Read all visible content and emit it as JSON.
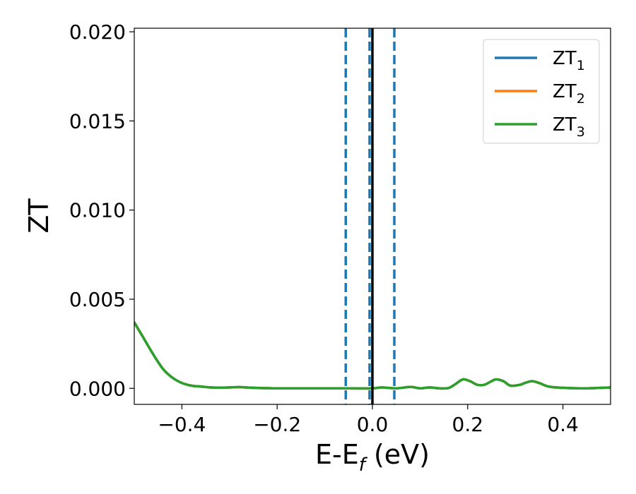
{
  "chart_data": {
    "type": "line",
    "xlabel": {
      "main": "E-E",
      "sub": "f",
      "tail": " (eV)"
    },
    "ylabel": "ZT",
    "xlim": [
      -0.5,
      0.5
    ],
    "ylim": [
      -0.0009,
      0.0202
    ],
    "xticks": [
      {
        "value": -0.4,
        "label": "−0.4"
      },
      {
        "value": -0.2,
        "label": "−0.2"
      },
      {
        "value": 0.0,
        "label": "0.0"
      },
      {
        "value": 0.2,
        "label": "0.2"
      },
      {
        "value": 0.4,
        "label": "0.4"
      }
    ],
    "yticks": [
      {
        "value": 0.0,
        "label": "0.000"
      },
      {
        "value": 0.005,
        "label": "0.005"
      },
      {
        "value": 0.01,
        "label": "0.010"
      },
      {
        "value": 0.015,
        "label": "0.015"
      },
      {
        "value": 0.02,
        "label": "0.020"
      }
    ],
    "grid": false,
    "legend_position": "top-right",
    "series": [
      {
        "name": "ZT",
        "sub": "1",
        "color": "#1f77b4",
        "x": [
          -0.5,
          -0.48,
          -0.46,
          -0.44,
          -0.42,
          -0.4,
          -0.38,
          -0.36,
          -0.34,
          -0.32,
          -0.3,
          -0.28,
          -0.26,
          -0.24,
          -0.22,
          -0.2,
          -0.15,
          -0.1,
          -0.05,
          0.0,
          0.02,
          0.05,
          0.08,
          0.1,
          0.12,
          0.14,
          0.16,
          0.175,
          0.19,
          0.205,
          0.22,
          0.235,
          0.25,
          0.26,
          0.275,
          0.29,
          0.31,
          0.32,
          0.335,
          0.35,
          0.37,
          0.4,
          0.45,
          0.5
        ],
        "y": [
          0.0037,
          0.0028,
          0.0019,
          0.0011,
          0.0006,
          0.0003,
          0.00015,
          0.0001,
          5e-05,
          4e-05,
          5e-05,
          7e-05,
          4e-05,
          2e-05,
          1e-05,
          0.0,
          0.0,
          0.0,
          0.0,
          0.0,
          5e-05,
          0.0,
          8e-05,
          0.0,
          5e-05,
          0.0,
          2e-05,
          0.00025,
          0.0005,
          0.0004,
          0.0002,
          0.0002,
          0.0004,
          0.0005,
          0.0004,
          0.00015,
          0.0002,
          0.0003,
          0.0004,
          0.0003,
          0.0001,
          3e-05,
          0.0,
          5e-05
        ]
      },
      {
        "name": "ZT",
        "sub": "2",
        "color": "#ff7f0e",
        "x": [
          -0.5,
          -0.48,
          -0.46,
          -0.44,
          -0.42,
          -0.4,
          -0.38,
          -0.36,
          -0.34,
          -0.32,
          -0.3,
          -0.28,
          -0.26,
          -0.24,
          -0.22,
          -0.2,
          -0.15,
          -0.1,
          -0.05,
          0.0,
          0.02,
          0.05,
          0.08,
          0.1,
          0.12,
          0.14,
          0.16,
          0.175,
          0.19,
          0.205,
          0.22,
          0.235,
          0.25,
          0.26,
          0.275,
          0.29,
          0.31,
          0.32,
          0.335,
          0.35,
          0.37,
          0.4,
          0.45,
          0.5
        ],
        "y": [
          0.0037,
          0.0028,
          0.0019,
          0.0011,
          0.0006,
          0.0003,
          0.00015,
          0.0001,
          5e-05,
          4e-05,
          5e-05,
          7e-05,
          4e-05,
          2e-05,
          1e-05,
          0.0,
          0.0,
          0.0,
          0.0,
          0.0,
          5e-05,
          0.0,
          8e-05,
          0.0,
          5e-05,
          0.0,
          2e-05,
          0.00025,
          0.0005,
          0.0004,
          0.0002,
          0.0002,
          0.0004,
          0.0005,
          0.0004,
          0.00015,
          0.0002,
          0.0003,
          0.0004,
          0.0003,
          0.0001,
          3e-05,
          0.0,
          5e-05
        ]
      },
      {
        "name": "ZT",
        "sub": "3",
        "color": "#2ca02c",
        "x": [
          -0.5,
          -0.48,
          -0.46,
          -0.44,
          -0.42,
          -0.4,
          -0.38,
          -0.36,
          -0.34,
          -0.32,
          -0.3,
          -0.28,
          -0.26,
          -0.24,
          -0.22,
          -0.2,
          -0.15,
          -0.1,
          -0.05,
          0.0,
          0.02,
          0.05,
          0.08,
          0.1,
          0.12,
          0.14,
          0.16,
          0.175,
          0.19,
          0.205,
          0.22,
          0.235,
          0.25,
          0.26,
          0.275,
          0.29,
          0.31,
          0.32,
          0.335,
          0.35,
          0.37,
          0.4,
          0.45,
          0.5
        ],
        "y": [
          0.0037,
          0.0028,
          0.0019,
          0.0011,
          0.0006,
          0.0003,
          0.00015,
          0.0001,
          5e-05,
          4e-05,
          5e-05,
          7e-05,
          4e-05,
          2e-05,
          1e-05,
          0.0,
          0.0,
          0.0,
          0.0,
          0.0,
          5e-05,
          0.0,
          8e-05,
          0.0,
          5e-05,
          0.0,
          2e-05,
          0.00025,
          0.0005,
          0.0004,
          0.0002,
          0.0002,
          0.0004,
          0.0005,
          0.0004,
          0.00015,
          0.0002,
          0.0003,
          0.0004,
          0.0003,
          0.0001,
          3e-05,
          0.0,
          5e-05
        ]
      }
    ],
    "vlines": [
      {
        "x": -0.056,
        "color": "#1f77b4",
        "style": "dashed"
      },
      {
        "x": -0.006,
        "color": "#1f77b4",
        "style": "dashed"
      },
      {
        "x": 0.046,
        "color": "#1f77b4",
        "style": "dashed"
      },
      {
        "x": 0.0,
        "color": "#000000",
        "style": "solid"
      }
    ]
  }
}
